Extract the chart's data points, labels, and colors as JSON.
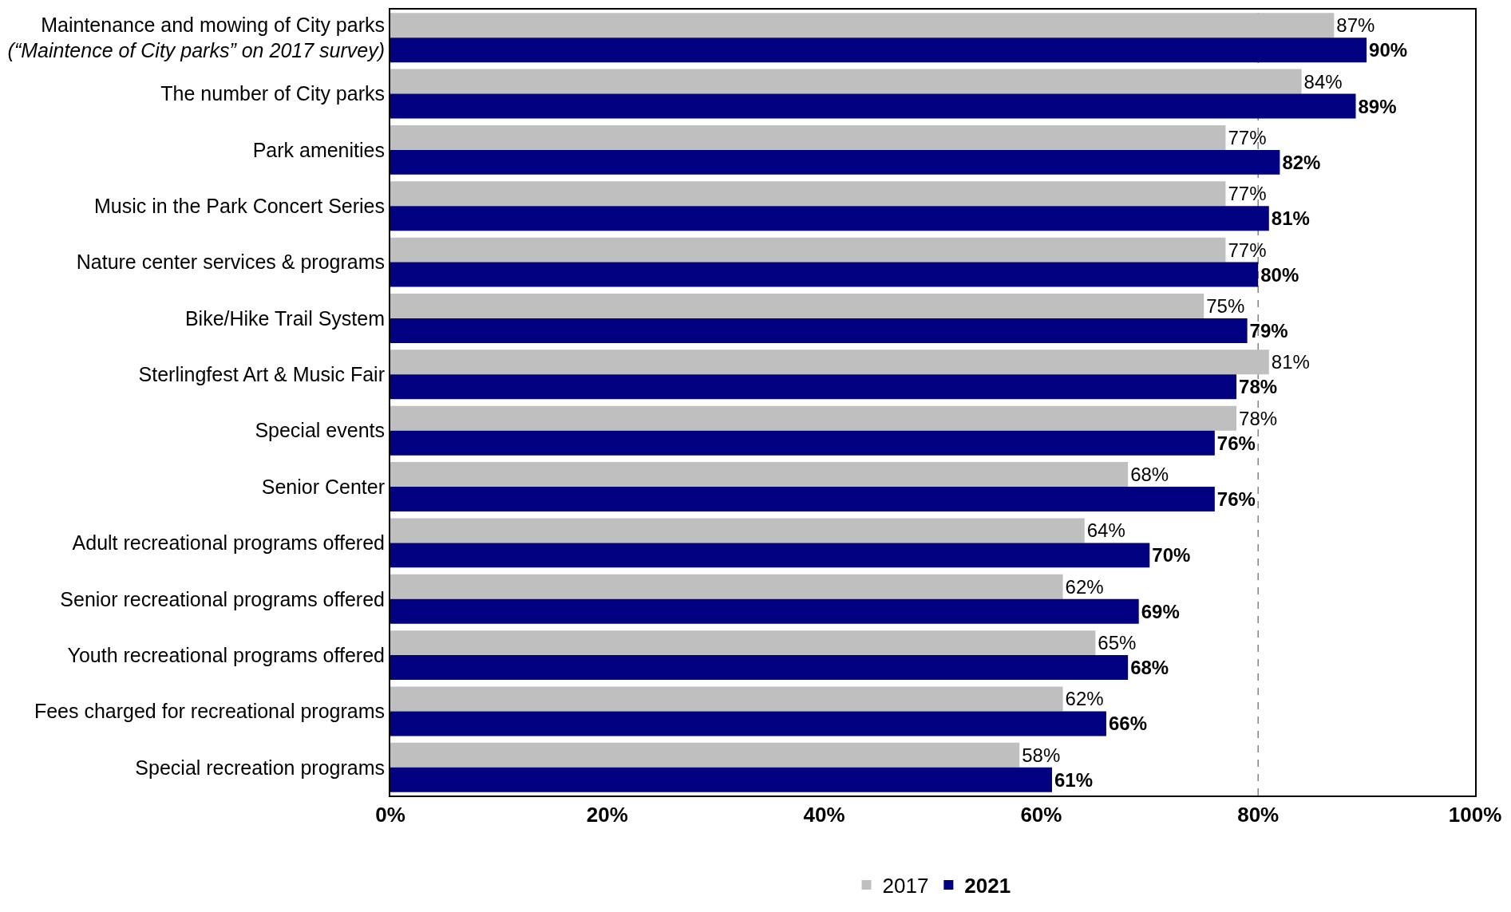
{
  "chart_data": {
    "type": "bar",
    "orientation": "horizontal",
    "categories": [
      "Maintenance and mowing of City parks\n(“Maintence of City parks” on 2017 survey)",
      "The number of City parks",
      "Park amenities",
      "Music in the Park Concert Series",
      "Nature center services & programs",
      "Bike/Hike Trail System",
      "Sterlingfest Art & Music Fair",
      "Special events",
      "Senior Center",
      "Adult recreational programs offered",
      "Senior recreational programs offered",
      "Youth recreational programs offered",
      "Fees charged for recreational programs",
      "Special recreation programs"
    ],
    "series": [
      {
        "name": "2017",
        "color": "#bfbfbf",
        "values": [
          87,
          84,
          77,
          77,
          77,
          75,
          81,
          78,
          68,
          64,
          62,
          65,
          62,
          58
        ],
        "value_labels": [
          "87%",
          "84%",
          "77%",
          "77%",
          "77%",
          "75%",
          "81%",
          "78%",
          "68%",
          "64%",
          "62%",
          "65%",
          "62%",
          "58%"
        ]
      },
      {
        "name": "2021",
        "color": "#000080",
        "values": [
          90,
          89,
          82,
          81,
          80,
          79,
          78,
          76,
          76,
          70,
          69,
          68,
          66,
          61
        ],
        "value_labels": [
          "90%",
          "89%",
          "82%",
          "81%",
          "80%",
          "79%",
          "78%",
          "76%",
          "76%",
          "70%",
          "69%",
          "68%",
          "66%",
          "61%"
        ]
      }
    ],
    "xlim": [
      0,
      100
    ],
    "xticks": [
      {
        "value": 0,
        "label": "0%"
      },
      {
        "value": 20,
        "label": "20%"
      },
      {
        "value": 40,
        "label": "40%"
      },
      {
        "value": 60,
        "label": "60%"
      },
      {
        "value": 80,
        "label": "80%"
      },
      {
        "value": 100,
        "label": "100%"
      }
    ],
    "ref_lines": [
      {
        "axis": "x",
        "value": 80,
        "color": "#808080",
        "line_style": "dashed"
      }
    ],
    "grid": false,
    "legend": "bottom"
  }
}
